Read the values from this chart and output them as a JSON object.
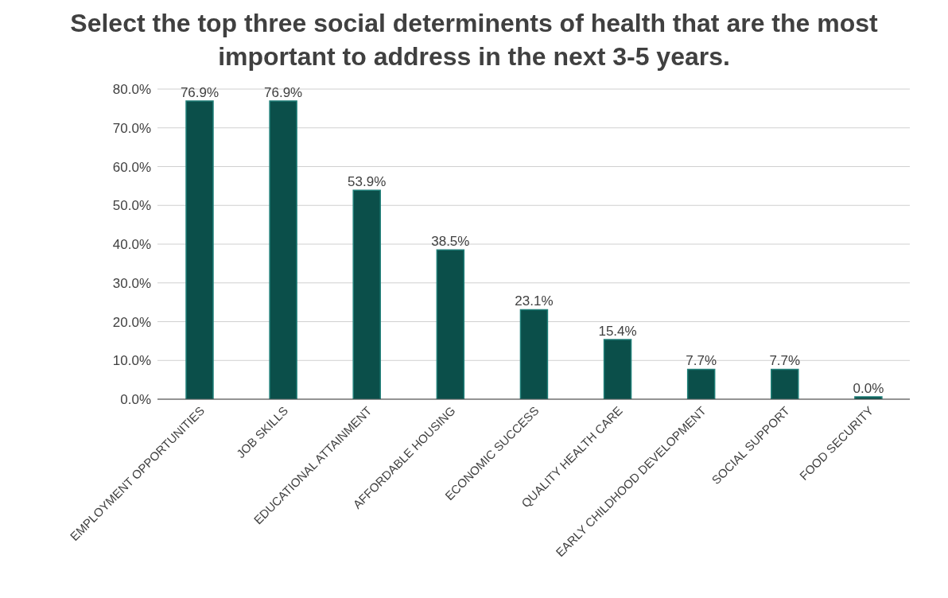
{
  "chart_data": {
    "type": "bar",
    "title": "Select the top three social determinents of health that are the most important to address in the next 3-5 years.",
    "categories": [
      "EMPLOYMENT OPPORTUNITIES",
      "JOB SKILLS",
      "EDUCATIONAL ATTAINMENT",
      "AFFORDABLE HOUSING",
      "ECONOMIC SUCCESS",
      "QUALITY HEALTH CARE",
      "EARLY CHILDHOOD DEVELOPMENT",
      "SOCIAL SUPPORT",
      "FOOD SECURITY"
    ],
    "values": [
      76.9,
      76.9,
      53.9,
      38.5,
      23.1,
      15.4,
      7.7,
      7.7,
      0.0
    ],
    "value_labels": [
      "76.9%",
      "76.9%",
      "53.9%",
      "38.5%",
      "23.1%",
      "15.4%",
      "7.7%",
      "7.7%",
      "0.0%"
    ],
    "color": "#0b4f4a",
    "ylim": [
      0,
      80
    ],
    "yticks": [
      {
        "value": 0,
        "label": "0.0%"
      },
      {
        "value": 10,
        "label": "10.0%"
      },
      {
        "value": 20,
        "label": "20.0%"
      },
      {
        "value": 30,
        "label": "30.0%"
      },
      {
        "value": 40,
        "label": "40.0%"
      },
      {
        "value": 50,
        "label": "50.0%"
      },
      {
        "value": 60,
        "label": "60.0%"
      },
      {
        "value": 70,
        "label": "70.0%"
      },
      {
        "value": 80,
        "label": "80.0%"
      }
    ],
    "grid": "y",
    "legend": false
  }
}
